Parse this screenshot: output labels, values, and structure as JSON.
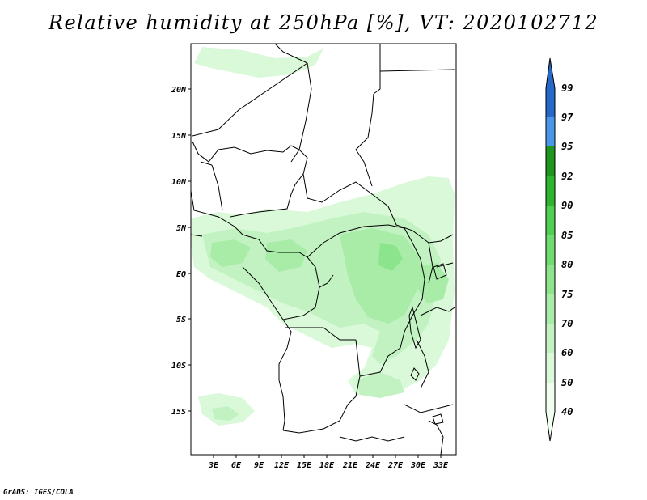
{
  "title": "Relative humidity at 250hPa [%], VT: 2020102712",
  "credit": "GrADS: IGES/COLA",
  "map": {
    "lat_labels": [
      "20N",
      "15N",
      "10N",
      "5N",
      "EQ",
      "5S",
      "10S",
      "15S"
    ],
    "lon_labels": [
      "3E",
      "6E",
      "9E",
      "12E",
      "15E",
      "18E",
      "21E",
      "24E",
      "27E",
      "30E",
      "33E"
    ]
  },
  "colorbar": {
    "levels": [
      "40",
      "50",
      "60",
      "70",
      "75",
      "80",
      "85",
      "90",
      "92",
      "95",
      "97",
      "99"
    ],
    "colors": {
      "c40": "#f0fff0",
      "c50": "#d9f9d9",
      "c60": "#c2f2c2",
      "c70": "#a8eca8",
      "c75": "#8ce48c",
      "c80": "#6fdc6f",
      "c85": "#4fd04f",
      "c90": "#2db62d",
      "c92": "#1e961e",
      "c95": "#1a7a1a",
      "c97": "#4a97ea",
      "c99": "#2568c8"
    }
  }
}
